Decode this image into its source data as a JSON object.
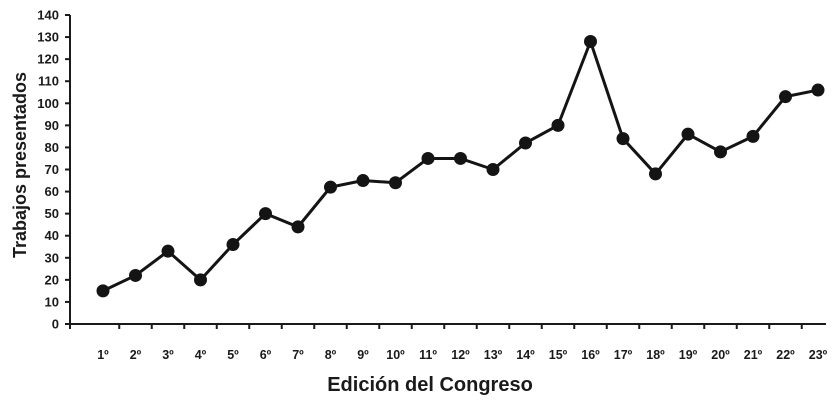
{
  "chart_data": {
    "type": "line",
    "title": "",
    "xlabel": "Edición del Congreso",
    "ylabel": "Trabajos presentados",
    "ylim": [
      0,
      140
    ],
    "yticks": [
      0,
      10,
      20,
      30,
      40,
      50,
      60,
      70,
      80,
      90,
      100,
      110,
      120,
      130,
      140
    ],
    "categories": [
      "1º",
      "2º",
      "3º",
      "4º",
      "5º",
      "6º",
      "7º",
      "8º",
      "9º",
      "10º",
      "11º",
      "12º",
      "13º",
      "14º",
      "15º",
      "16º",
      "17º",
      "18º",
      "19º",
      "20º",
      "21º",
      "22º",
      "23º"
    ],
    "series": [
      {
        "values": [
          15,
          22,
          33,
          20,
          36,
          50,
          44,
          62,
          65,
          64,
          75,
          75,
          70,
          82,
          90,
          128,
          84,
          68,
          86,
          78,
          85,
          103,
          106
        ]
      }
    ],
    "grid": false,
    "legend": "none",
    "colors": {
      "line": "#141414",
      "marker": "#141414",
      "axis": "#1a1a1a"
    }
  }
}
